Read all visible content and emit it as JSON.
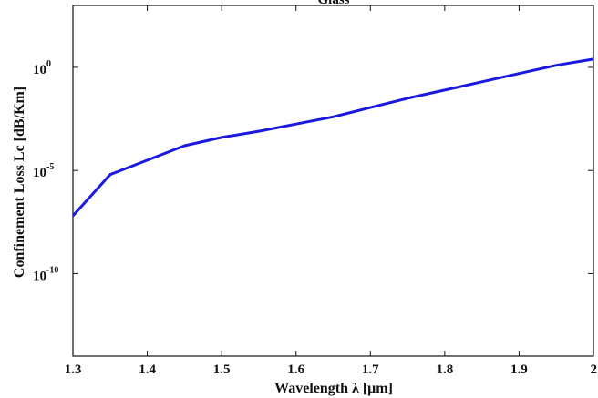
{
  "chart_data": {
    "type": "line",
    "title": "Glass",
    "xlabel": "Wavelength λ [μm]",
    "ylabel": "Confinement Loss Lc [dB/Km]",
    "x_ticks": [
      "1.3",
      "1.4",
      "1.5",
      "1.6",
      "1.7",
      "1.8",
      "1.9",
      "2"
    ],
    "y_ticks": [
      {
        "base": "10",
        "exp": "0",
        "value": 0
      },
      {
        "base": "10",
        "exp": "-5",
        "value": -5
      },
      {
        "base": "10",
        "exp": "-10",
        "value": -10
      }
    ],
    "yscale": "log",
    "xlim": [
      1.3,
      2.0
    ],
    "ylim_log10": [
      -14,
      3
    ],
    "grid": false,
    "series": [
      {
        "color": "#1a1adf",
        "x": [
          1.3,
          1.35,
          1.4,
          1.45,
          1.5,
          1.55,
          1.6,
          1.65,
          1.7,
          1.75,
          1.8,
          1.85,
          1.9,
          1.95,
          2.0
        ],
        "log10_y": [
          -7.2,
          -5.2,
          -4.5,
          -3.8,
          -3.4,
          -3.1,
          -2.75,
          -2.4,
          -1.95,
          -1.5,
          -1.1,
          -0.7,
          -0.3,
          0.1,
          0.4
        ]
      }
    ]
  }
}
